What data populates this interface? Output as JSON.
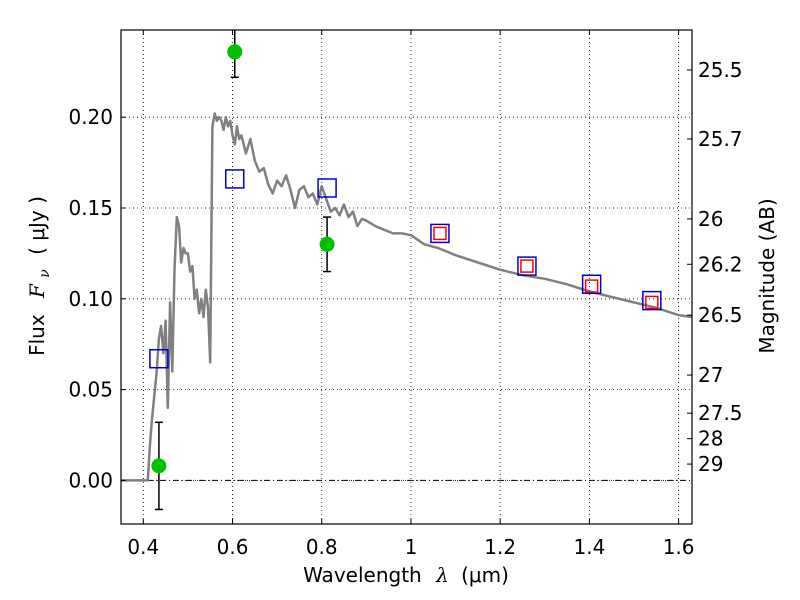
{
  "chart_data": {
    "type": "scatter",
    "xlabel": "Wavelength",
    "xlabel_symbol": "λ",
    "xlabel_unit": "(μm)",
    "ylabel": "Flux",
    "ylabel_symbol": "F",
    "ylabel_subscript": "ν",
    "ylabel_unit": "( μJy )",
    "y2label": "Magnitude (AB)",
    "xlim": [
      0.35,
      1.63
    ],
    "ylim": [
      -0.024,
      0.248
    ],
    "grid": true,
    "x_ticks": [
      {
        "value": 0.4,
        "label": "0.4"
      },
      {
        "value": 0.6,
        "label": "0.6"
      },
      {
        "value": 0.8,
        "label": "0.8"
      },
      {
        "value": 1.0,
        "label": "1"
      },
      {
        "value": 1.2,
        "label": "1.2"
      },
      {
        "value": 1.4,
        "label": "1.4"
      },
      {
        "value": 1.6,
        "label": "1.6"
      }
    ],
    "y_ticks": [
      {
        "value": 0.0,
        "label": "0.00"
      },
      {
        "value": 0.05,
        "label": "0.05"
      },
      {
        "value": 0.1,
        "label": "0.10"
      },
      {
        "value": 0.15,
        "label": "0.15"
      },
      {
        "value": 0.2,
        "label": "0.20"
      }
    ],
    "y2_ticks": [
      {
        "flux": 0.226,
        "label": "25.5"
      },
      {
        "flux": 0.188,
        "label": "25.7"
      },
      {
        "flux": 0.144,
        "label": "26"
      },
      {
        "flux": 0.119,
        "label": "26.2"
      },
      {
        "flux": 0.091,
        "label": "26.5"
      },
      {
        "flux": 0.058,
        "label": "27"
      },
      {
        "flux": 0.037,
        "label": "27.5"
      },
      {
        "flux": 0.023,
        "label": "28"
      },
      {
        "flux": 0.009,
        "label": "29"
      }
    ],
    "series": [
      {
        "kind": "line",
        "color": "#808080",
        "x": [
          0.35,
          0.39,
          0.41,
          0.415,
          0.42,
          0.43,
          0.435,
          0.44,
          0.445,
          0.45,
          0.455,
          0.46,
          0.465,
          0.47,
          0.475,
          0.48,
          0.485,
          0.49,
          0.495,
          0.5,
          0.505,
          0.51,
          0.515,
          0.52,
          0.525,
          0.53,
          0.535,
          0.54,
          0.545,
          0.55,
          0.555,
          0.56,
          0.565,
          0.57,
          0.575,
          0.58,
          0.585,
          0.59,
          0.595,
          0.6,
          0.605,
          0.61,
          0.615,
          0.62,
          0.63,
          0.64,
          0.65,
          0.66,
          0.67,
          0.68,
          0.69,
          0.7,
          0.71,
          0.72,
          0.73,
          0.74,
          0.75,
          0.76,
          0.77,
          0.78,
          0.79,
          0.8,
          0.81,
          0.82,
          0.83,
          0.84,
          0.85,
          0.86,
          0.87,
          0.88,
          0.89,
          0.9,
          0.92,
          0.94,
          0.96,
          0.98,
          1.0,
          1.03,
          1.06,
          1.1,
          1.15,
          1.2,
          1.25,
          1.3,
          1.35,
          1.4,
          1.45,
          1.5,
          1.55,
          1.6,
          1.63
        ],
        "y": [
          0.0,
          0.0,
          0.0,
          0.02,
          0.035,
          0.06,
          0.078,
          0.085,
          0.07,
          0.088,
          0.04,
          0.098,
          0.06,
          0.116,
          0.145,
          0.14,
          0.12,
          0.128,
          0.125,
          0.125,
          0.115,
          0.118,
          0.1,
          0.105,
          0.092,
          0.1,
          0.09,
          0.105,
          0.095,
          0.065,
          0.195,
          0.202,
          0.198,
          0.2,
          0.198,
          0.193,
          0.2,
          0.195,
          0.198,
          0.19,
          0.185,
          0.195,
          0.188,
          0.19,
          0.18,
          0.188,
          0.176,
          0.17,
          0.172,
          0.163,
          0.158,
          0.165,
          0.162,
          0.168,
          0.16,
          0.15,
          0.16,
          0.162,
          0.156,
          0.158,
          0.152,
          0.162,
          0.155,
          0.148,
          0.15,
          0.146,
          0.152,
          0.145,
          0.148,
          0.14,
          0.144,
          0.143,
          0.14,
          0.138,
          0.136,
          0.136,
          0.135,
          0.13,
          0.128,
          0.124,
          0.12,
          0.116,
          0.113,
          0.111,
          0.108,
          0.104,
          0.101,
          0.098,
          0.095,
          0.091,
          0.09
        ]
      },
      {
        "kind": "markers",
        "marker": "open-square",
        "color": "#0000cc",
        "x": [
          0.435,
          0.605,
          0.812,
          1.065,
          1.26,
          1.405,
          1.54
        ],
        "y": [
          0.067,
          0.166,
          0.161,
          0.136,
          0.118,
          0.108,
          0.099
        ]
      },
      {
        "kind": "markers",
        "marker": "open-square-small",
        "color": "#ff0000",
        "x": [
          1.065,
          1.26,
          1.405,
          1.54
        ],
        "y": [
          0.136,
          0.118,
          0.107,
          0.098
        ]
      },
      {
        "kind": "errorbar",
        "marker": "filled-circle",
        "color": "#00c000",
        "x": [
          0.435,
          0.605,
          0.812
        ],
        "y": [
          0.008,
          0.236,
          0.13
        ],
        "yerr_low": [
          0.024,
          0.014,
          0.015
        ],
        "yerr_high": [
          0.024,
          0.014,
          0.015
        ]
      }
    ]
  }
}
